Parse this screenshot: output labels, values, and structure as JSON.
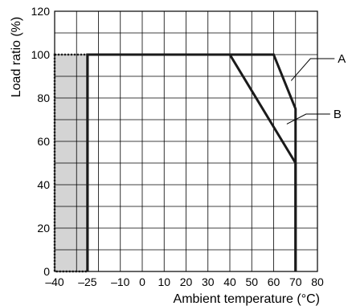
{
  "chart_data": {
    "type": "line",
    "xlabel": "Ambient temperature (°C)",
    "ylabel": "Load ratio (%)",
    "xlim": [
      -40,
      80
    ],
    "ylim": [
      0,
      120
    ],
    "x_ticks": [
      {
        "value": -40,
        "label": "–40"
      },
      {
        "value": -25,
        "label": "–25"
      },
      {
        "value": -10,
        "label": "–10"
      },
      {
        "value": 0,
        "label": "0"
      },
      {
        "value": 10,
        "label": "10"
      },
      {
        "value": 20,
        "label": "20"
      },
      {
        "value": 30,
        "label": "30"
      },
      {
        "value": 40,
        "label": "40"
      },
      {
        "value": 50,
        "label": "50"
      },
      {
        "value": 60,
        "label": "60"
      },
      {
        "value": 70,
        "label": "70"
      },
      {
        "value": 80,
        "label": "80"
      }
    ],
    "x_gridlines": [
      -40,
      -30,
      -20,
      -10,
      0,
      10,
      20,
      30,
      40,
      50,
      60,
      70,
      80
    ],
    "y_ticks": [
      0,
      20,
      40,
      60,
      80,
      100,
      120
    ],
    "y_gridlines": [
      0,
      10,
      20,
      30,
      40,
      50,
      60,
      70,
      80,
      90,
      100,
      110,
      120
    ],
    "grid": true,
    "shaded_region": {
      "x": [
        -40,
        -25
      ],
      "y": [
        0,
        100
      ],
      "color": "#d4d4d4",
      "border": "dotted"
    },
    "series": [
      {
        "name": "A",
        "points": [
          [
            -25,
            0
          ],
          [
            -25,
            100
          ],
          [
            60,
            100
          ],
          [
            70,
            75
          ],
          [
            70,
            0
          ]
        ],
        "label_at": [
          68,
          88
        ]
      },
      {
        "name": "B",
        "points": [
          [
            -25,
            0
          ],
          [
            -25,
            100
          ],
          [
            40,
            100
          ],
          [
            70,
            50
          ],
          [
            70,
            0
          ]
        ],
        "label_at": [
          66,
          68
        ]
      }
    ],
    "colors": {
      "line": "#1a1a1a",
      "grid": "#000000",
      "shade": "#d4d4d4"
    }
  }
}
